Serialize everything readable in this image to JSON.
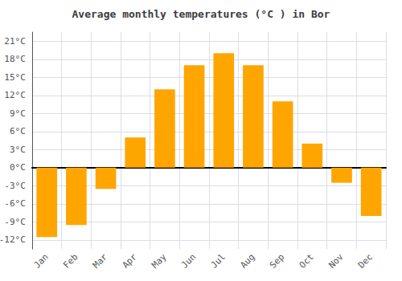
{
  "chart_data": {
    "type": "bar",
    "title": "Average monthly temperatures (°C ) in Bor",
    "categories": [
      "Jan",
      "Feb",
      "Mar",
      "Apr",
      "May",
      "Jun",
      "Jul",
      "Aug",
      "Sep",
      "Oct",
      "Nov",
      "Dec"
    ],
    "values": [
      -11.5,
      -9.5,
      -3.5,
      5.0,
      13.0,
      17.0,
      19.0,
      17.0,
      11.0,
      4.0,
      -2.5,
      -8.0
    ],
    "color": "#FFA500",
    "ylim": [
      -13.5,
      22.5
    ],
    "yticks": [
      {
        "value": -12,
        "label": "-12°C"
      },
      {
        "value": -9,
        "label": "-9°C"
      },
      {
        "value": -6,
        "label": "-6°C"
      },
      {
        "value": -3,
        "label": "-3°C"
      },
      {
        "value": 0,
        "label": "0°C"
      },
      {
        "value": 3,
        "label": "3°C"
      },
      {
        "value": 6,
        "label": "6°C"
      },
      {
        "value": 9,
        "label": "9°C"
      },
      {
        "value": 12,
        "label": "12°C"
      },
      {
        "value": 15,
        "label": "15°C"
      },
      {
        "value": 18,
        "label": "18°C"
      },
      {
        "value": 21,
        "label": "21°C"
      }
    ],
    "grid": true
  }
}
